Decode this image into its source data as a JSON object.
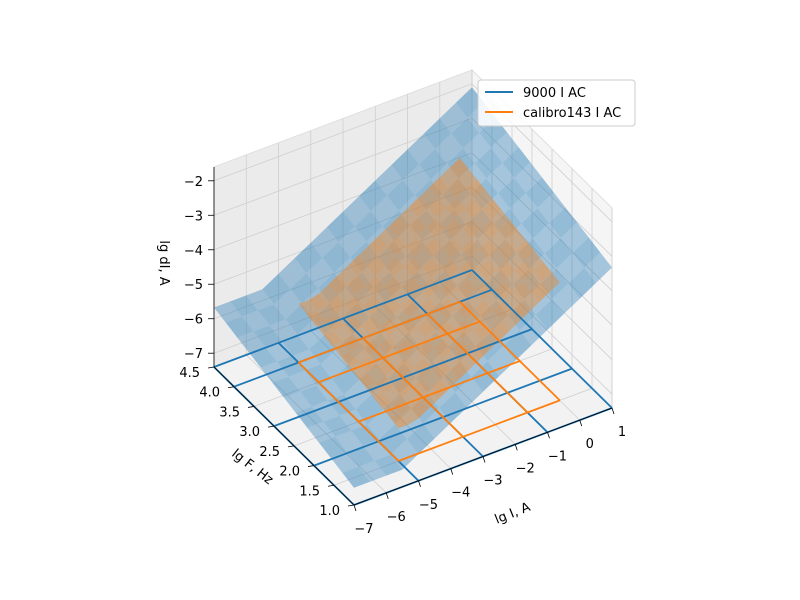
{
  "chart_data": {
    "type": "surface3d",
    "title": "",
    "axes": {
      "x": {
        "label": "lg I, A",
        "ticks": [
          "−7",
          "−6",
          "−5",
          "−4",
          "−3",
          "−2",
          "−1",
          "0",
          "1"
        ],
        "range": [
          -7,
          1
        ]
      },
      "y": {
        "label": "lg F, Hz",
        "ticks": [
          "1.0",
          "1.5",
          "2.0",
          "2.5",
          "3.0",
          "3.5",
          "4.0",
          "4.5"
        ],
        "range": [
          1.0,
          4.5
        ]
      },
      "z": {
        "label": "lg dI, A",
        "ticks": [
          "−7",
          "−6",
          "−5",
          "−4",
          "−3",
          "−2"
        ],
        "range": [
          -7.4,
          -1.6
        ]
      }
    },
    "series": [
      {
        "name": "9000 I AC",
        "color": "#1f77b4",
        "x": [
          -7,
          -5,
          -3,
          -1,
          1
        ],
        "y": [
          1.0,
          2.0,
          3.0,
          4.0,
          4.5
        ],
        "z_floor": -7.4,
        "surface_model": {
          "base": -6.9,
          "x_gain": 0.55,
          "x_origin": -5.5,
          "freq_gain": 0.35
        }
      },
      {
        "name": "calibro143 I AC",
        "color": "#ff7f0e",
        "x": [
          -5,
          -3,
          -1,
          0
        ],
        "y": [
          1.5,
          2.5,
          3.5,
          4.0
        ],
        "z_floor": -7.4,
        "surface_model": {
          "base": -6.6,
          "x_gain": 0.55,
          "x_origin": -4.5,
          "freq_gain": 0.3
        }
      }
    ],
    "legend": {
      "position": "top-right",
      "entries": [
        "9000 I AC",
        "calibro143 I AC"
      ]
    },
    "grid": true
  }
}
